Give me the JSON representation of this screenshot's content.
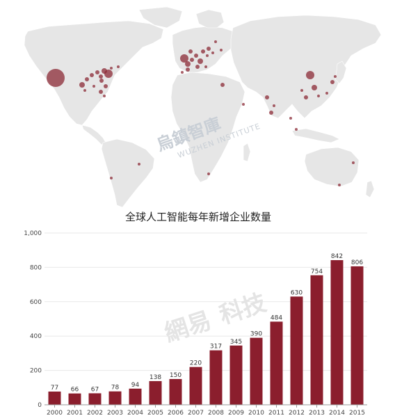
{
  "map": {
    "land_color": "#e6e6e6",
    "border_color": "#ffffff",
    "point_color": "#8b2a35",
    "watermark_cn": "烏鎮智庫",
    "watermark_en": "WUZHEN INSTITUTE",
    "regions": [
      "north-america",
      "south-america",
      "europe",
      "africa",
      "asia",
      "oceania"
    ]
  },
  "chart_watermark": {
    "left": "網易",
    "right": "科技"
  },
  "chart_data": {
    "type": "bar",
    "title": "全球人工智能每年新增企业数量",
    "categories": [
      "2000",
      "2001",
      "2002",
      "2003",
      "2004",
      "2005",
      "2006",
      "2007",
      "2008",
      "2009",
      "2010",
      "2011",
      "2012",
      "2013",
      "2014",
      "2015"
    ],
    "values": [
      77,
      66,
      67,
      78,
      94,
      138,
      150,
      220,
      317,
      345,
      390,
      484,
      630,
      754,
      842,
      806
    ],
    "ylim": [
      0,
      1000
    ],
    "yticks": [
      "0",
      "200",
      "400",
      "600",
      "800",
      "1,000"
    ],
    "xlabel": "",
    "ylabel": "",
    "grid": true,
    "bar_color": "#8b1e2d"
  }
}
